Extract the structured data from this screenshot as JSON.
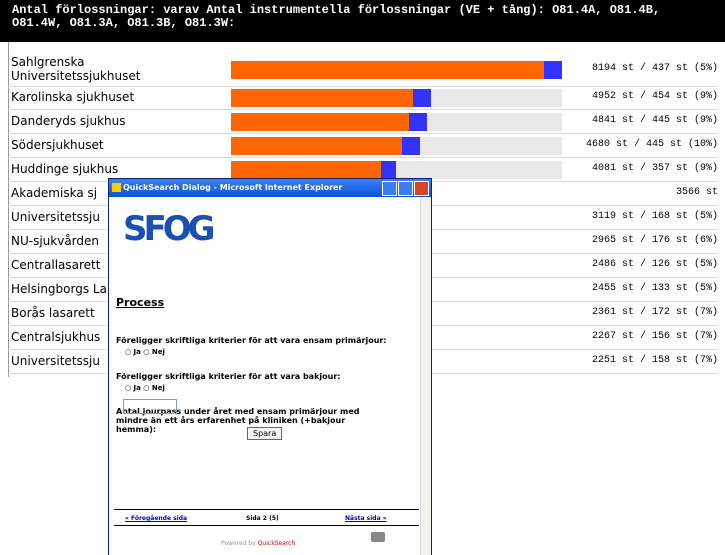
{
  "header": {
    "title_lines": [
      "Antal förlossningar: varav Antal instrumentella förlossningar (VE + tång): O81.4A, O81.4B,",
      "O81.4W, O81.3A, O81.3B, O81.3W:"
    ]
  },
  "rows": [
    {
      "name": "Sahlgrenska\nUniversitetssjukhuset",
      "total": 8194,
      "instrumental": 437,
      "label": "8194 st / 437 st (5%)"
    },
    {
      "name": "Karolinska sjukhuset",
      "total": 4952,
      "instrumental": 454,
      "label": "4952 st / 454 st (9%)"
    },
    {
      "name": "Danderyds sjukhus",
      "total": 4841,
      "instrumental": 445,
      "label": "4841 st / 445 st (9%)"
    },
    {
      "name": "Södersjukhuset",
      "total": 4680,
      "instrumental": 445,
      "label": "4680 st / 445 st (10%)"
    },
    {
      "name": "Huddinge sjukhus",
      "total": 4081,
      "instrumental": 357,
      "label": "4081 st / 357 st (9%)"
    },
    {
      "name": "Akademiska sj",
      "label": "3566 st"
    },
    {
      "name": "Universitetssju",
      "label": "3119 st / 168 st (5%)"
    },
    {
      "name": "NU-sjukvården",
      "label": "2965 st / 176 st (6%)"
    },
    {
      "name": "Centrallasarett",
      "label": "2486 st / 126 st (5%)"
    },
    {
      "name": "Helsingborgs La",
      "label": "2455 st / 133 st (5%)"
    },
    {
      "name": "Borås lasarett",
      "label": "2361 st / 172 st (7%)"
    },
    {
      "name": "Centralsjukhus",
      "label": "2267 st / 156 st (7%)"
    },
    {
      "name": "Universitetssju",
      "label": "2251 st / 158 st (7%)"
    }
  ],
  "dialog": {
    "title": "QuickSearch Dialog - Microsoft Internet Explorer",
    "logo": "SFOG",
    "heading": "Process",
    "questions": [
      {
        "text": "Föreligger skriftliga kriterier för att vara ensam primärjour:",
        "options": [
          "Ja",
          "Nej"
        ]
      },
      {
        "text": "Föreligger skriftliga kriterier för att vara bakjour:",
        "options": [
          "Ja",
          "Nej"
        ]
      },
      {
        "text": "Antal jourpass under året med ensam primärjour med mindre än ett års erfarenhet på kliniken (+bakjour hemma):"
      }
    ],
    "button": "Spara",
    "prev": "« Föregående sida",
    "page": "Sida 2 (5)",
    "next": "Nästa sida »",
    "powered": "Powered by",
    "brand": "QuickSearch"
  }
}
